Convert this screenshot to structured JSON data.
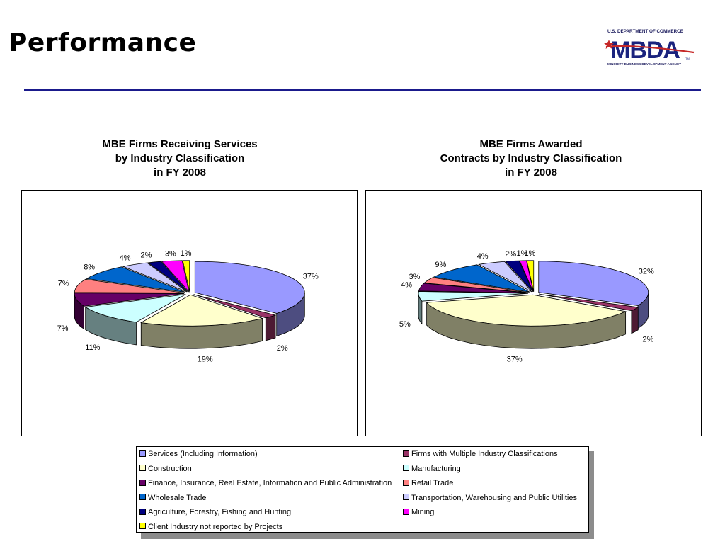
{
  "page": {
    "title": "Performance"
  },
  "logo": {
    "top_text": "U.S. DEPARTMENT OF COMMERCE",
    "name": "MBDA",
    "tm": "TM",
    "bottom_text": "MINORITY BUSINESS DEVELOPMENT AGENCY"
  },
  "colors": {
    "rule": "#1a1a8c",
    "slices": [
      "#9999FF",
      "#993366",
      "#FFFFCC",
      "#CCFFFF",
      "#660066",
      "#FF8080",
      "#0066CC",
      "#CCCCFF",
      "#000080",
      "#FF00FF",
      "#FFFF00"
    ]
  },
  "legend": {
    "items": [
      "Services (Including Information)",
      "Firms with Multiple Industry Classifications",
      "Construction",
      "Manufacturing",
      "Finance, Insurance, Real Estate, Information and Public Administration",
      "Retail Trade",
      "Wholesale Trade",
      "Transportation, Warehousing and Public Utilities",
      "Agriculture, Forestry, Fishing and Hunting",
      "Mining",
      "Client Industry not reported by Projects"
    ]
  },
  "chart_data": [
    {
      "type": "pie",
      "title_lines": [
        "MBE Firms Receiving Services",
        "by Industry Classification",
        "in FY 2008"
      ],
      "values": [
        37,
        2,
        19,
        11,
        7,
        7,
        8,
        4,
        2,
        3,
        1
      ],
      "labels": [
        "37%",
        "2%",
        "19%",
        "11%",
        "7%",
        "7%",
        "8%",
        "4%",
        "2%",
        "3%",
        "1%"
      ]
    },
    {
      "type": "pie",
      "title_lines": [
        "MBE Firms Awarded",
        "Contracts by Industry Classification",
        "in FY 2008"
      ],
      "values": [
        32,
        2,
        37,
        5,
        4,
        3,
        9,
        4,
        2,
        1,
        1
      ],
      "labels": [
        "32%",
        "2%",
        "37%",
        "5%",
        "4%",
        "3%",
        "9%",
        "4%",
        "2%",
        "1%",
        "1%"
      ]
    }
  ]
}
